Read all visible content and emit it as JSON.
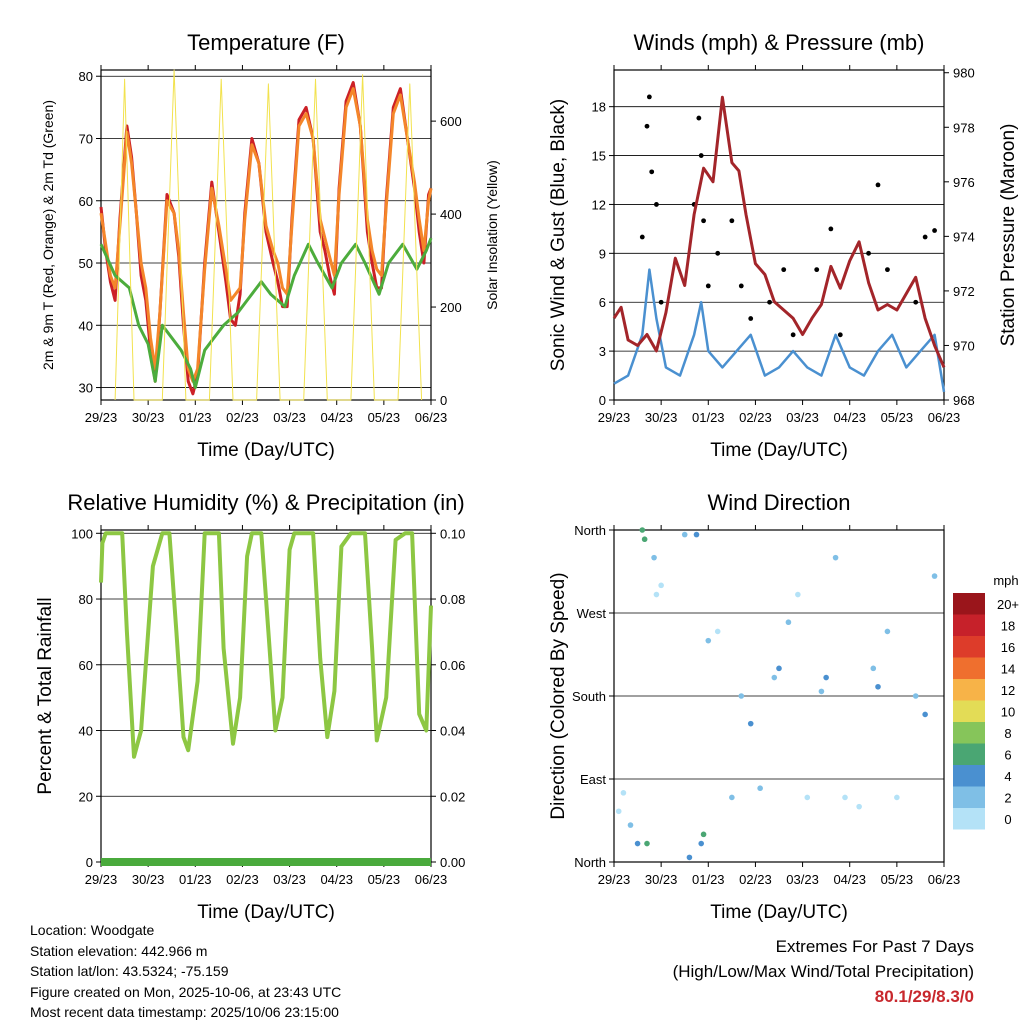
{
  "colors": {
    "temp_2m": "#cc2026",
    "temp_9m": "#f4862a",
    "dewpoint": "#4cac3c",
    "insolation": "#f2e24e",
    "wind": "#4a90d0",
    "gust": "#000000",
    "pressure": "#a3252a",
    "humidity": "#8dc743",
    "precip": "#4aaa3c",
    "extremes": "#c8282d"
  },
  "x_ticks": [
    "29/23",
    "30/23",
    "01/23",
    "02/23",
    "03/23",
    "04/23",
    "05/23",
    "06/23"
  ],
  "chart_data": [
    {
      "id": "temperature",
      "type": "line",
      "title": "Temperature (F)",
      "xlabel": "Time (Day/UTC)",
      "ylabel": "2m & 9m T (Red, Orange) & 2m Td (Green)",
      "y2label": "Solar Insolation (Yellow)",
      "ylim": [
        28,
        81
      ],
      "yticks": [
        30,
        40,
        50,
        60,
        70,
        80
      ],
      "y2lim": [
        0,
        710
      ],
      "y2ticks": [
        0,
        200,
        400,
        600
      ],
      "xlim": [
        0,
        7
      ],
      "series": [
        {
          "name": "2m T",
          "color": "temp_2m",
          "x": [
            0,
            0.1,
            0.2,
            0.3,
            0.4,
            0.55,
            0.65,
            0.75,
            0.85,
            0.95,
            1.05,
            1.15,
            1.25,
            1.4,
            1.55,
            1.65,
            1.75,
            1.85,
            1.95,
            2.05,
            2.2,
            2.35,
            2.5,
            2.65,
            2.75,
            2.85,
            2.95,
            3.05,
            3.2,
            3.35,
            3.5,
            3.65,
            3.75,
            3.85,
            3.95,
            4.05,
            4.2,
            4.35,
            4.5,
            4.65,
            4.75,
            4.85,
            4.95,
            5.05,
            5.2,
            5.35,
            5.5,
            5.65,
            5.75,
            5.85,
            5.95,
            6.05,
            6.2,
            6.35,
            6.5,
            6.65,
            6.75,
            6.85,
            6.95,
            7.0
          ],
          "values": [
            59,
            52,
            47,
            44,
            57,
            72,
            67,
            58,
            48,
            44,
            36,
            31,
            42,
            61,
            58,
            51,
            40,
            31,
            29,
            32,
            50,
            63,
            55,
            47,
            41,
            40,
            45,
            58,
            70,
            66,
            55,
            50,
            47,
            43,
            43,
            57,
            73,
            75,
            70,
            55,
            52,
            48,
            45,
            62,
            76,
            79,
            72,
            55,
            50,
            46,
            46,
            60,
            75,
            78,
            70,
            62,
            55,
            50,
            61,
            62
          ]
        },
        {
          "name": "9m T",
          "color": "temp_9m",
          "x": [
            0,
            0.1,
            0.2,
            0.3,
            0.4,
            0.55,
            0.65,
            0.75,
            0.85,
            0.95,
            1.05,
            1.15,
            1.25,
            1.4,
            1.55,
            1.65,
            1.75,
            1.85,
            1.95,
            2.05,
            2.2,
            2.35,
            2.5,
            2.65,
            2.75,
            2.85,
            2.95,
            3.05,
            3.2,
            3.35,
            3.5,
            3.65,
            3.75,
            3.85,
            3.95,
            4.05,
            4.2,
            4.35,
            4.5,
            4.65,
            4.75,
            4.85,
            4.95,
            5.05,
            5.2,
            5.35,
            5.5,
            5.65,
            5.75,
            5.85,
            5.95,
            6.05,
            6.2,
            6.35,
            6.5,
            6.65,
            6.75,
            6.85,
            6.95,
            7.0
          ],
          "values": [
            58,
            53,
            48,
            46,
            56,
            71,
            66,
            58,
            50,
            46,
            38,
            33,
            42,
            60,
            58,
            52,
            42,
            33,
            31,
            33,
            49,
            62,
            56,
            49,
            44,
            45,
            46,
            57,
            69,
            66,
            56,
            52,
            50,
            46,
            45,
            56,
            72,
            74,
            70,
            57,
            54,
            51,
            48,
            61,
            75,
            78,
            72,
            57,
            52,
            49,
            48,
            59,
            74,
            77,
            70,
            63,
            57,
            52,
            60,
            62
          ]
        },
        {
          "name": "2m Td",
          "color": "dewpoint",
          "x": [
            0,
            0.3,
            0.6,
            0.8,
            1.0,
            1.15,
            1.3,
            1.5,
            1.7,
            1.9,
            2.0,
            2.2,
            2.4,
            2.6,
            2.9,
            3.1,
            3.4,
            3.6,
            3.9,
            4.1,
            4.4,
            4.6,
            4.9,
            5.1,
            5.4,
            5.6,
            5.9,
            6.1,
            6.4,
            6.7,
            6.9,
            7.0
          ],
          "values": [
            53,
            48,
            46,
            40,
            37,
            31,
            40,
            38,
            36,
            33,
            30,
            36,
            38,
            40,
            42,
            44,
            47,
            45,
            43,
            48,
            53,
            50,
            46,
            50,
            53,
            50,
            45,
            50,
            53,
            49,
            52,
            54
          ]
        },
        {
          "name": "Solar Insolation",
          "color": "insolation",
          "axis": "y2",
          "x": [
            0.3,
            0.5,
            0.7,
            1.3,
            1.55,
            1.8,
            2.3,
            2.55,
            2.8,
            3.3,
            3.55,
            3.8,
            4.3,
            4.55,
            4.8,
            5.3,
            5.55,
            5.8,
            6.3,
            6.55,
            6.8
          ],
          "values": [
            0,
            690,
            0,
            0,
            710,
            0,
            0,
            690,
            0,
            0,
            680,
            0,
            0,
            690,
            0,
            0,
            700,
            0,
            0,
            680,
            0
          ]
        }
      ]
    },
    {
      "id": "winds",
      "type": "scatter",
      "title": "Winds (mph) & Pressure (mb)",
      "xlabel": "Time (Day/UTC)",
      "ylabel": "Sonic Wind & Gust (Blue, Black)",
      "y2label": "Station Pressure (Maroon)",
      "ylim": [
        0,
        20.25
      ],
      "yticks": [
        0,
        3,
        6,
        9,
        12,
        15,
        18
      ],
      "y2lim": [
        968,
        980.1
      ],
      "y2ticks": [
        968,
        970,
        972,
        974,
        976,
        978,
        980
      ],
      "xlim": [
        0,
        7
      ],
      "series": [
        {
          "name": "Gust",
          "color": "gust",
          "kind": "points",
          "x": [
            0.6,
            0.7,
            0.75,
            0.8,
            0.9,
            1.0,
            1.7,
            1.8,
            1.85,
            1.9,
            2.0,
            2.2,
            2.5,
            2.7,
            2.9,
            3.3,
            3.6,
            3.8,
            4.3,
            4.6,
            4.8,
            5.4,
            5.6,
            5.8,
            6.4,
            6.6,
            6.8
          ],
          "values": [
            10,
            16.8,
            18.6,
            14,
            12,
            6,
            12,
            17.3,
            15,
            11,
            7,
            9,
            11,
            7,
            5,
            6,
            8,
            4,
            8,
            10.5,
            4,
            9,
            13.2,
            8,
            6,
            10,
            10.4
          ]
        },
        {
          "name": "Wind",
          "color": "wind",
          "kind": "line",
          "x": [
            0,
            0.3,
            0.6,
            0.75,
            0.9,
            1.1,
            1.4,
            1.7,
            1.85,
            2.0,
            2.3,
            2.6,
            2.9,
            3.2,
            3.5,
            3.8,
            4.1,
            4.4,
            4.7,
            5.0,
            5.3,
            5.6,
            5.9,
            6.2,
            6.5,
            6.8,
            7.0
          ],
          "values": [
            1,
            1.5,
            4,
            8,
            5,
            2,
            1.5,
            4,
            6,
            3,
            2,
            3,
            4,
            1.5,
            2,
            3,
            2,
            1.5,
            4,
            2,
            1.5,
            3,
            4,
            2,
            3,
            4,
            0.5
          ]
        },
        {
          "name": "Pressure",
          "color": "pressure",
          "kind": "line",
          "axis": "y2",
          "x": [
            0,
            0.15,
            0.3,
            0.5,
            0.7,
            0.9,
            1.1,
            1.3,
            1.5,
            1.7,
            1.9,
            2.1,
            2.3,
            2.5,
            2.65,
            2.8,
            3.0,
            3.2,
            3.4,
            3.6,
            3.8,
            4.0,
            4.2,
            4.4,
            4.6,
            4.8,
            5.0,
            5.2,
            5.4,
            5.6,
            5.8,
            6.0,
            6.2,
            6.4,
            6.6,
            6.8,
            7.0
          ],
          "values": [
            971,
            971.4,
            970.2,
            970,
            970.4,
            969.8,
            971.2,
            973.2,
            972.2,
            974.8,
            976.5,
            976,
            979.1,
            976.7,
            976.4,
            974.8,
            973,
            972.6,
            971.6,
            971.3,
            971,
            970.4,
            971,
            971.5,
            972.9,
            972.1,
            973.1,
            973.8,
            972.3,
            971.3,
            971.5,
            971.3,
            971.9,
            972.5,
            971,
            970,
            969.2
          ]
        }
      ]
    },
    {
      "id": "humidity",
      "type": "line",
      "title": "Relative Humidity (%) & Precipitation (in)",
      "xlabel": "Time (Day/UTC)",
      "ylabel": "Percent & Total Rainfall",
      "ylim": [
        0,
        101
      ],
      "yticks": [
        0,
        20,
        40,
        60,
        80,
        100
      ],
      "y2lim": [
        0,
        0.101
      ],
      "y2ticks": [
        "0.00",
        "0.02",
        "0.04",
        "0.06",
        "0.08",
        "0.10"
      ],
      "xlim": [
        0,
        7
      ],
      "series": [
        {
          "name": "Relative Humidity",
          "color": "humidity",
          "x": [
            0,
            0.03,
            0.1,
            0.2,
            0.45,
            0.55,
            0.7,
            0.85,
            0.95,
            1.1,
            1.3,
            1.45,
            1.6,
            1.75,
            1.85,
            2.05,
            2.2,
            2.35,
            2.5,
            2.6,
            2.8,
            2.95,
            3.1,
            3.2,
            3.4,
            3.55,
            3.7,
            3.85,
            4.0,
            4.1,
            4.3,
            4.5,
            4.65,
            4.8,
            4.95,
            5.1,
            5.3,
            5.45,
            5.6,
            5.75,
            5.85,
            6.05,
            6.25,
            6.45,
            6.6,
            6.75,
            6.9,
            7.0
          ],
          "values": [
            85,
            97,
            100,
            100,
            100,
            70,
            32,
            40,
            60,
            90,
            100,
            100,
            70,
            38,
            34,
            55,
            100,
            100,
            100,
            65,
            36,
            50,
            93,
            100,
            100,
            70,
            40,
            50,
            95,
            100,
            100,
            100,
            62,
            38,
            52,
            96,
            100,
            100,
            100,
            65,
            37,
            50,
            98,
            100,
            100,
            45,
            40,
            78
          ]
        },
        {
          "name": "Total Precipitation",
          "color": "precip",
          "x": [
            0,
            7
          ],
          "values": [
            0,
            0
          ]
        }
      ]
    },
    {
      "id": "direction",
      "type": "scatter",
      "title": "Wind Direction",
      "xlabel": "Time (Day/UTC)",
      "ylabel": "Direction (Colored By Speed)",
      "ylim": [
        0,
        360
      ],
      "yticks": [
        0,
        90,
        180,
        270,
        360
      ],
      "ytick_labels": [
        "North",
        "East",
        "South",
        "West",
        "North"
      ],
      "xlim": [
        0,
        7
      ],
      "colorbar": {
        "title": "mph",
        "labels": [
          "0",
          "2",
          "4",
          "6",
          "8",
          "10",
          "12",
          "14",
          "16",
          "18",
          "20+"
        ],
        "colors": [
          "#b4e2f7",
          "#7fbfe6",
          "#4a90d0",
          "#4aa673",
          "#86c55a",
          "#e3dc56",
          "#f7b348",
          "#ef6f2e",
          "#dd3c2a",
          "#c6212a",
          "#9a151b"
        ]
      },
      "series": [
        {
          "name": "Direction",
          "kind": "points",
          "x": [
            0.1,
            0.2,
            0.35,
            0.5,
            0.6,
            0.65,
            0.7,
            0.85,
            0.9,
            1.0,
            1.5,
            1.6,
            1.75,
            1.85,
            1.9,
            2.0,
            2.2,
            2.5,
            2.7,
            2.9,
            3.1,
            3.4,
            3.5,
            3.7,
            3.9,
            4.1,
            4.4,
            4.5,
            4.7,
            4.9,
            5.2,
            5.5,
            5.6,
            5.8,
            6.0,
            6.4,
            6.6,
            6.8
          ],
          "values": [
            55,
            75,
            40,
            20,
            360,
            350,
            20,
            330,
            290,
            300,
            355,
            5,
            355,
            20,
            30,
            240,
            250,
            70,
            180,
            150,
            80,
            200,
            210,
            260,
            290,
            70,
            185,
            200,
            330,
            70,
            60,
            210,
            190,
            250,
            70,
            180,
            160,
            310
          ],
          "speeds": [
            0,
            1,
            3,
            4,
            6,
            6,
            7,
            3,
            1,
            1,
            2,
            4,
            4,
            5,
            6,
            3,
            1,
            2,
            3,
            4,
            2,
            3,
            4,
            3,
            1,
            1,
            3,
            4,
            2,
            1,
            1,
            3,
            4,
            3,
            1,
            3,
            4,
            2
          ]
        }
      ]
    }
  ],
  "info": {
    "location": "Location: Woodgate",
    "elevation": "Station elevation: 442.966 m",
    "latlon": "Station lat/lon: 43.5324; -75.159",
    "created": "Figure created on Mon, 2025-10-06, at 23:43 UTC",
    "recent": "Most recent data timestamp: 2025/10/06 23:15:00"
  },
  "extremes": {
    "heading": "Extremes For Past 7 Days",
    "subheading": "(High/Low/Max Wind/Total Precipitation)",
    "value": "80.1/29/8.3/0"
  }
}
